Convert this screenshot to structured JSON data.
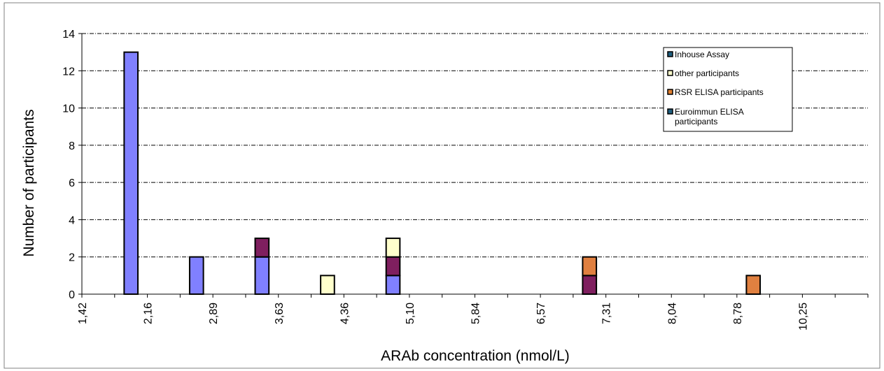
{
  "chart_data": {
    "type": "bar",
    "stacked": true,
    "xlabel": "ARAb concentration (nmol/L)",
    "ylabel": "Number of participants",
    "ylim": [
      0,
      14
    ],
    "yticks": [
      0,
      2,
      4,
      6,
      8,
      10,
      12,
      14
    ],
    "xtick_labels": [
      "1,42",
      "2,16",
      "2,89",
      "3,63",
      "4,36",
      "5,10",
      "5,84",
      "6,57",
      "7,31",
      "8,04",
      "8,78",
      "10,25"
    ],
    "bin_count": 24,
    "grid": {
      "horizontal": true,
      "style": "dash-dot"
    },
    "legend_position": "top-right",
    "legend": [
      {
        "label": "Inhouse Assay",
        "color": "#1f5f7f"
      },
      {
        "label": "other participants",
        "color": "#ffffcc"
      },
      {
        "label": "RSR ELISA participants",
        "color": "#e07f2f"
      },
      {
        "label": "Euroimmun ELISA participants",
        "color": "#1f5f7f"
      }
    ],
    "series": [
      {
        "color": "#8080ff",
        "values": [
          0,
          13,
          0,
          2,
          0,
          2,
          0,
          0,
          0,
          1,
          0,
          0,
          0,
          0,
          0,
          0,
          0,
          0,
          0,
          0,
          0,
          0,
          0,
          0
        ]
      },
      {
        "color": "#7f1f5f",
        "values": [
          0,
          0,
          0,
          0,
          0,
          1,
          0,
          0,
          0,
          1,
          0,
          0,
          0,
          0,
          0,
          1,
          0,
          0,
          0,
          0,
          0,
          0,
          0,
          0
        ]
      },
      {
        "color": "#ffffcc",
        "values": [
          0,
          0,
          0,
          0,
          0,
          0,
          0,
          1,
          0,
          1,
          0,
          0,
          0,
          0,
          0,
          0,
          0,
          0,
          0,
          0,
          0,
          0,
          0,
          0
        ]
      },
      {
        "color": "#e08040",
        "values": [
          0,
          0,
          0,
          0,
          0,
          0,
          0,
          0,
          0,
          0,
          0,
          0,
          0,
          0,
          0,
          1,
          0,
          0,
          0,
          0,
          1,
          0,
          0,
          0
        ]
      }
    ]
  }
}
